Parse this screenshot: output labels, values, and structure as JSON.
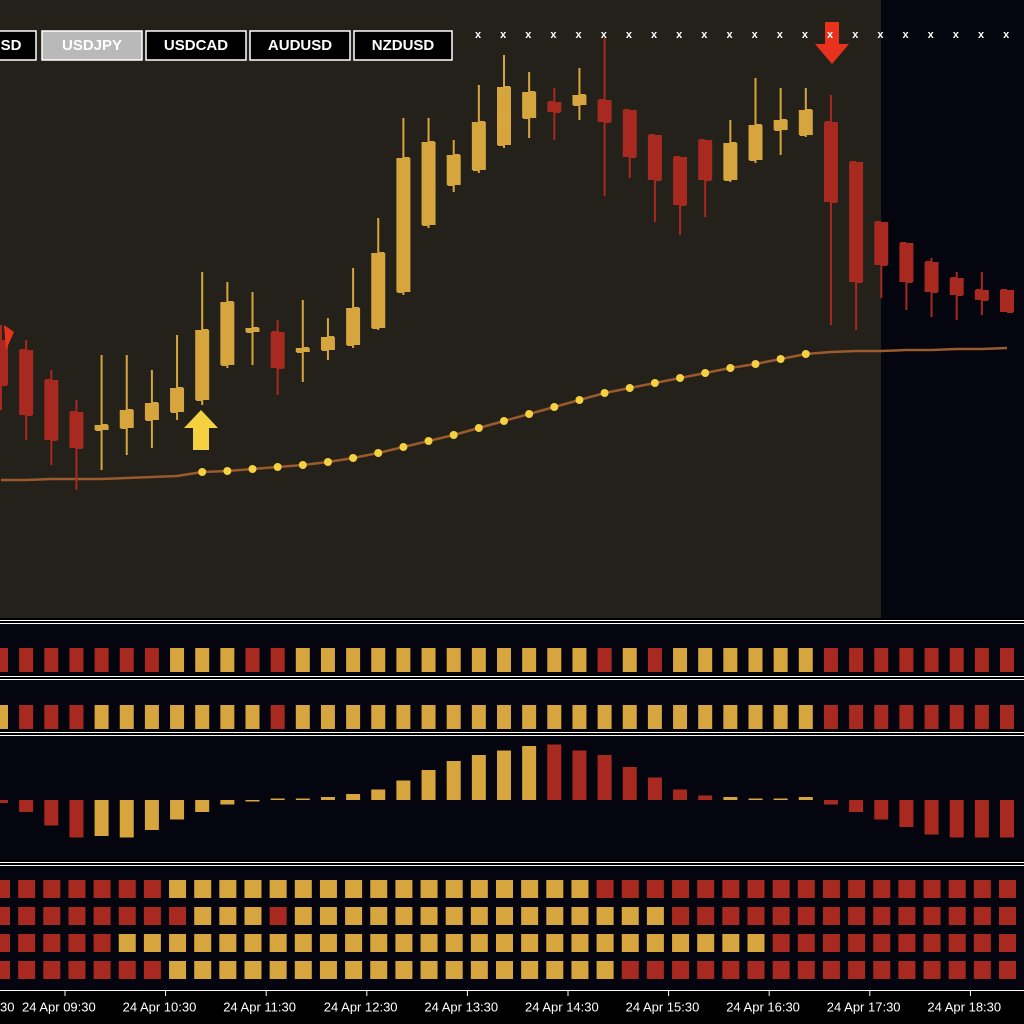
{
  "tabs": [
    "SD",
    "USDJPY",
    "USDCAD",
    "AUDUSD",
    "NZDUSD"
  ],
  "selected_tab": 1,
  "markers": [
    "x",
    "x",
    "x",
    "x",
    "x",
    "x",
    "x",
    "x",
    "x",
    "x",
    "x",
    "x",
    "x",
    "x",
    "x",
    "x",
    "x",
    "x",
    "x",
    "x",
    "x",
    "x"
  ],
  "time_labels": [
    "30",
    "24 Apr 09:30",
    "24 Apr 10:30",
    "24 Apr 11:30",
    "24 Apr 12:30",
    "24 Apr 13:30",
    "24 Apr 14:30",
    "24 Apr 15:30",
    "24 Apr 16:30",
    "24 Apr 17:30",
    "24 Apr 18:30"
  ],
  "chart_data": {
    "type": "candlestick",
    "up_color": "#d6a53e",
    "down_color": "#a8291f",
    "ylim": [
      0,
      617
    ],
    "open": [
      277,
      267,
      237,
      205,
      187,
      189,
      197,
      205,
      217,
      252,
      285,
      285,
      265,
      267,
      272,
      289,
      325,
      392,
      432,
      447,
      472,
      499,
      515,
      512,
      517,
      507,
      482,
      460,
      477,
      437,
      457,
      487,
      482,
      495,
      455,
      395,
      374,
      355,
      339,
      327,
      327
    ],
    "high": [
      292,
      277,
      247,
      217,
      262,
      262,
      247,
      282,
      345,
      335,
      325,
      297,
      317,
      299,
      349,
      399,
      499,
      499,
      477,
      532,
      562,
      545,
      529,
      549,
      579,
      507,
      482,
      460,
      477,
      497,
      539,
      529,
      529,
      522,
      455,
      395,
      374,
      359,
      345,
      345,
      327
    ],
    "low": [
      207,
      177,
      152,
      127,
      147,
      162,
      169,
      197,
      212,
      249,
      252,
      222,
      235,
      257,
      269,
      287,
      322,
      389,
      425,
      444,
      469,
      479,
      477,
      497,
      421,
      439,
      395,
      382,
      400,
      435,
      454,
      462,
      480,
      292,
      287,
      319,
      307,
      300,
      297,
      302,
      305
    ],
    "close": [
      232,
      202,
      177,
      169,
      192,
      207,
      214,
      229,
      287,
      315,
      289,
      249,
      269,
      280,
      309,
      364,
      459,
      475,
      462,
      495,
      530,
      525,
      505,
      522,
      495,
      460,
      437,
      412,
      437,
      474,
      492,
      497,
      507,
      415,
      335,
      352,
      335,
      325,
      322,
      317,
      305
    ],
    "average": {
      "color": "#9a5a2c",
      "values": [
        137,
        137,
        138,
        138,
        138,
        139,
        140,
        141,
        145,
        146,
        148,
        150,
        152,
        155,
        159,
        164,
        170,
        176,
        182,
        189,
        196,
        203,
        210,
        217,
        224,
        229,
        234,
        239,
        244,
        249,
        253,
        258,
        263,
        265,
        266,
        266,
        267,
        267,
        268,
        268,
        269
      ]
    },
    "dots": {
      "color": "#f5d142",
      "values": [
        null,
        null,
        null,
        null,
        null,
        null,
        null,
        null,
        145,
        146,
        148,
        150,
        152,
        155,
        159,
        164,
        170,
        176,
        182,
        189,
        196,
        203,
        210,
        217,
        224,
        229,
        234,
        239,
        244,
        249,
        253,
        258,
        263,
        null,
        null,
        null,
        null,
        null,
        null,
        null,
        null
      ]
    },
    "strip1": "DDDDDDDUUUDDUUUUUUUUUUUUDUDUUUUUUDDDDDDDD",
    "strip2": "UDDDUUUUUUUDUUUUUUUUUUUUUUUUUUUUUDDDDDDDD",
    "histogram": {
      "ylim": [
        -40,
        40
      ],
      "colors": "DDDDUUUUUUUUUUUUUUUUUUDDDDDDDUUUUDDDDDDDD",
      "values": [
        -2,
        -8,
        -17,
        -25,
        -24,
        -25,
        -20,
        -13,
        -8,
        -3,
        -1,
        1,
        1,
        2,
        4,
        7,
        13,
        20,
        26,
        30,
        33,
        36,
        37,
        33,
        30,
        22,
        15,
        7,
        3,
        2,
        1,
        1,
        2,
        -3,
        -8,
        -13,
        -18,
        -23,
        -25,
        -25,
        -25
      ]
    },
    "grid_rows": [
      "DDDDDDDUUUUUUUUUUUUUUUUUDDDDDDDDDDDDDDDDD",
      "DDDDDDDDUUUDUUUUUUUUUUUUUUUDDDDDDDDDDDDDD",
      "DDDDDUUUUUUUUUUUUUUUUUUUUUUUUUUDDDDDDDDDD",
      "DDDDDDDUUUUUUUUUUUUUUUUUUDDDDDDDDDDDDDDDD"
    ]
  }
}
